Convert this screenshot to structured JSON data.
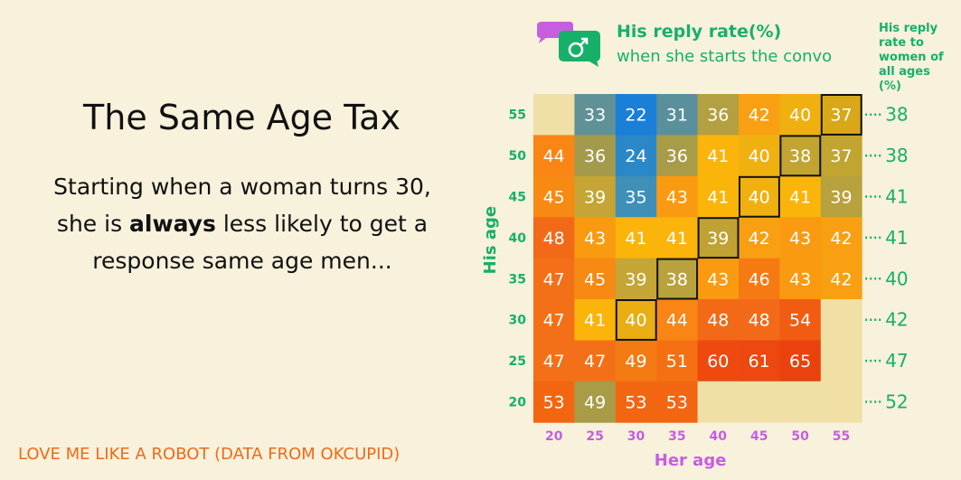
{
  "text": {
    "title": "The Same Age Tax",
    "body_before": "Starting when a woman turns 30, she is ",
    "body_bold": "always",
    "body_after": " less likely to get a response same age men...",
    "source": "LOVE ME LIKE A ROBOT (DATA FROM OKCUPID)",
    "legend_line1": "His reply rate(%)",
    "legend_line2": "when she starts the convo",
    "side_header": "His reply rate to women of all ages (%)"
  },
  "icons": {
    "legend": "male-chat-bubble-icon"
  },
  "colors": {
    "background": "#f8f1dc",
    "green": "#16b06a",
    "purple": "#c65ee0",
    "orange_text": "#f06a17",
    "empty_cell": "#f0e0a6"
  },
  "chart_data": {
    "type": "heatmap",
    "xlabel": "Her age",
    "ylabel": "His age",
    "x_categories": [
      "20",
      "25",
      "30",
      "35",
      "40",
      "45",
      "50",
      "55"
    ],
    "y_categories": [
      "55",
      "50",
      "45",
      "40",
      "35",
      "30",
      "25",
      "20"
    ],
    "values": [
      [
        null,
        33,
        22,
        31,
        36,
        42,
        40,
        37
      ],
      [
        44,
        36,
        24,
        36,
        41,
        40,
        38,
        37
      ],
      [
        45,
        39,
        35,
        43,
        41,
        40,
        41,
        39
      ],
      [
        48,
        43,
        41,
        41,
        39,
        42,
        43,
        42
      ],
      [
        47,
        45,
        39,
        38,
        43,
        46,
        43,
        42
      ],
      [
        47,
        41,
        40,
        44,
        48,
        48,
        54,
        null
      ],
      [
        47,
        47,
        49,
        51,
        60,
        61,
        65,
        null
      ],
      [
        53,
        49,
        53,
        53,
        null,
        null,
        null,
        null
      ]
    ],
    "outlined_cells": [
      [
        0,
        7
      ],
      [
        1,
        6
      ],
      [
        2,
        5
      ],
      [
        3,
        4
      ],
      [
        4,
        3
      ],
      [
        5,
        2
      ]
    ],
    "row_totals_label": "His reply rate to women of all ages (%)",
    "row_totals": [
      38,
      38,
      41,
      41,
      40,
      42,
      47,
      52
    ]
  }
}
